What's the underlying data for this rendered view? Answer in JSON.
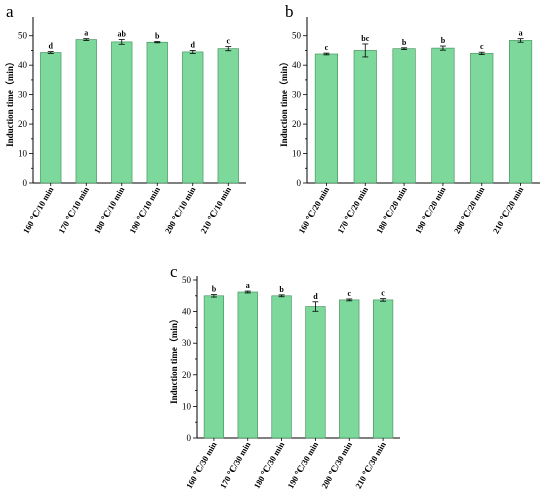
{
  "chart_data": [
    {
      "type": "bar",
      "panel": "a",
      "ylabel": "Induction time（min）",
      "ylim": [
        0,
        55
      ],
      "yticks": [
        0,
        10,
        20,
        30,
        40,
        50
      ],
      "categories": [
        "160 ℃/10 min",
        "170 ℃/10 min",
        "180 ℃/10 min",
        "190 ℃/10 min",
        "200 ℃/10 min",
        "210 ℃/10 min"
      ],
      "values": [
        44.3,
        48.7,
        47.9,
        47.8,
        44.5,
        45.6
      ],
      "errors": [
        0.3,
        0.3,
        0.8,
        0.2,
        0.5,
        0.7
      ],
      "letters": [
        "d",
        "a",
        "ab",
        "b",
        "d",
        "c"
      ],
      "bar_color": "#7dd99b"
    },
    {
      "type": "bar",
      "panel": "b",
      "ylabel": "Induction time（min）",
      "ylim": [
        0,
        55
      ],
      "yticks": [
        0,
        10,
        20,
        30,
        40,
        50
      ],
      "categories": [
        "160 ℃/20 min",
        "170 ℃/20 min",
        "180 ℃/20 min",
        "190 ℃/20 min",
        "200 ℃/20 min",
        "210 ℃/20 min"
      ],
      "values": [
        43.8,
        45.0,
        45.6,
        45.8,
        44.0,
        48.4
      ],
      "errors": [
        0.3,
        2.2,
        0.3,
        0.7,
        0.4,
        0.6
      ],
      "letters": [
        "c",
        "bc",
        "b",
        "b",
        "c",
        "a"
      ],
      "bar_color": "#7dd99b"
    },
    {
      "type": "bar",
      "panel": "c",
      "ylabel": "Induction time（min）",
      "ylim": [
        0,
        50
      ],
      "yticks": [
        0,
        10,
        20,
        30,
        40,
        50
      ],
      "categories": [
        "160 ℃/30 min",
        "170 ℃/30 min",
        "180 ℃/30 min",
        "190 ℃/30 min",
        "200 ℃/30 min",
        "210 ℃/30 min"
      ],
      "values": [
        45.0,
        46.2,
        45.0,
        41.6,
        43.7,
        43.7
      ],
      "errors": [
        0.4,
        0.3,
        0.3,
        1.5,
        0.3,
        0.4
      ],
      "letters": [
        "b",
        "a",
        "b",
        "d",
        "c",
        "c"
      ],
      "bar_color": "#7dd99b"
    }
  ]
}
